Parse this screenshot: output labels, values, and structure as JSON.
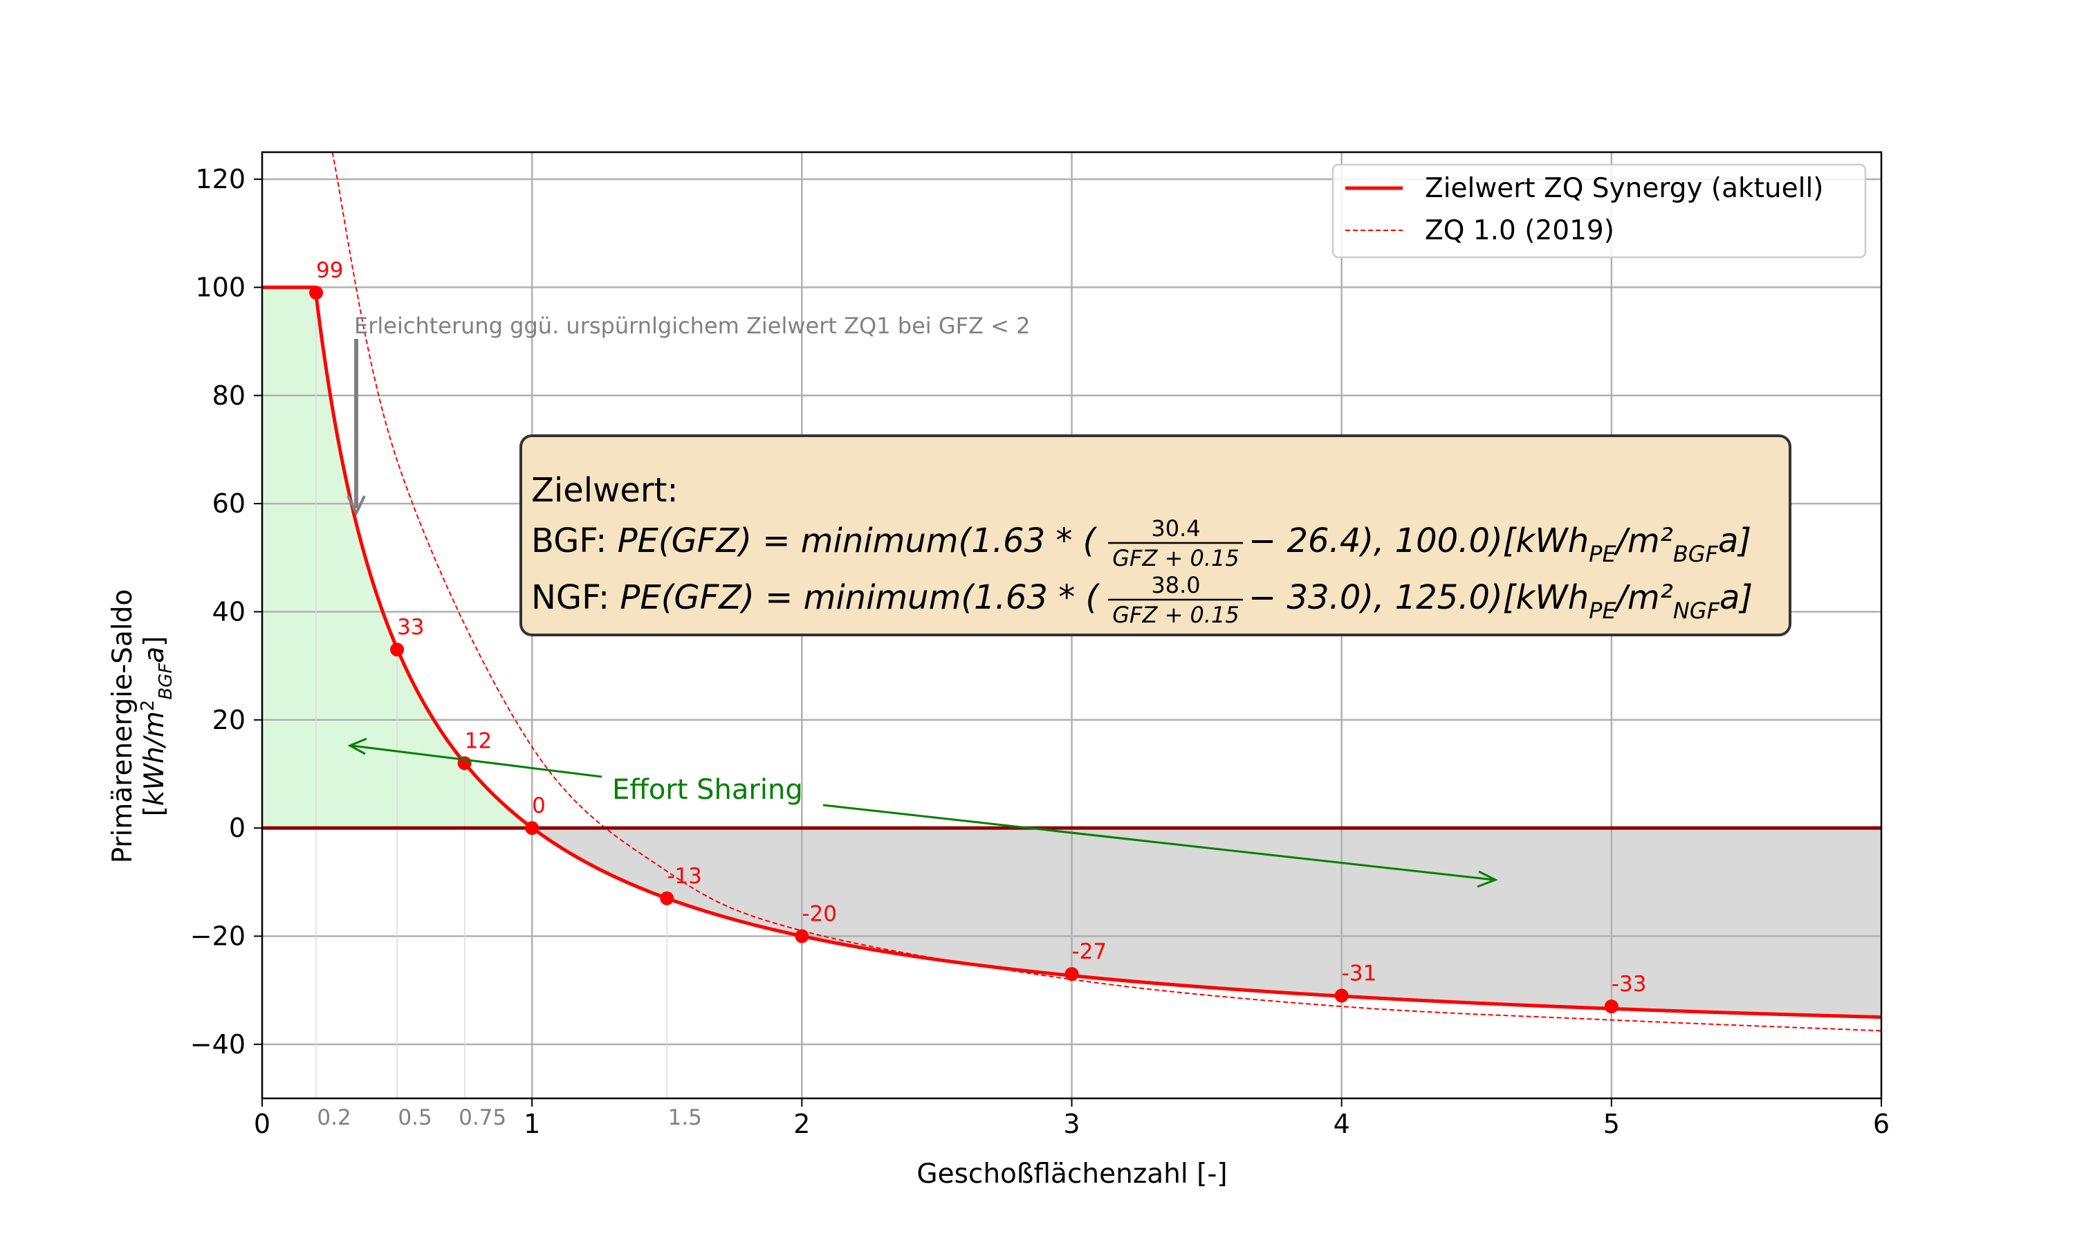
{
  "chart_data": {
    "type": "line",
    "xlabel": "Geschoßflächenzahl [-]",
    "ylabel_line1": "Primärenergie-Saldo",
    "ylabel_line2": "[kWh/m²BGFa]",
    "xlim": [
      0,
      6
    ],
    "ylim": [
      -50,
      125
    ],
    "xticks": [
      "0",
      "1",
      "2",
      "3",
      "4",
      "5",
      "6"
    ],
    "xticks_minor": [
      "0.2",
      "0.5",
      "0.75",
      "1.5"
    ],
    "xticks_minor_values": [
      0.2,
      0.5,
      0.75,
      1.5
    ],
    "yticks": [
      "120",
      "100",
      "80",
      "60",
      "40",
      "20",
      "0",
      "−20",
      "−40"
    ],
    "yticks_values": [
      120,
      100,
      80,
      60,
      40,
      20,
      0,
      -20,
      -40
    ],
    "grid": true,
    "legend_position": "top-right",
    "series": [
      {
        "name": "Zielwert ZQ Synergy (aktuell)",
        "color": "#ff0000",
        "style": "solid",
        "formula": "min(1.63*(30.4/(GFZ+0.15)-26.4), 100.0)",
        "points": [
          {
            "x": 0.0,
            "y": 100
          },
          {
            "x": 0.2,
            "y": 99
          },
          {
            "x": 0.5,
            "y": 33
          },
          {
            "x": 0.75,
            "y": 12
          },
          {
            "x": 1.0,
            "y": 0
          },
          {
            "x": 1.5,
            "y": -13
          },
          {
            "x": 2.0,
            "y": -20
          },
          {
            "x": 3.0,
            "y": -27
          },
          {
            "x": 4.0,
            "y": -31
          },
          {
            "x": 5.0,
            "y": -33
          },
          {
            "x": 6.0,
            "y": -35
          }
        ]
      },
      {
        "name": "ZQ 1.0 (2019)",
        "color": "#ff0000",
        "style": "dashed",
        "points": [
          {
            "x": 0.26,
            "y": 125
          },
          {
            "x": 0.5,
            "y": 68
          },
          {
            "x": 1.0,
            "y": 15
          },
          {
            "x": 1.5,
            "y": -8
          },
          {
            "x": 2.0,
            "y": -19
          },
          {
            "x": 3.0,
            "y": -28
          },
          {
            "x": 4.0,
            "y": -33
          },
          {
            "x": 5.0,
            "y": -35.5
          },
          {
            "x": 6.0,
            "y": -37.5
          }
        ]
      }
    ],
    "marker_points": [
      {
        "x": 0.2,
        "y": 99,
        "label": "99"
      },
      {
        "x": 0.5,
        "y": 33,
        "label": "33"
      },
      {
        "x": 0.75,
        "y": 12,
        "label": "12"
      },
      {
        "x": 1.0,
        "y": 0,
        "label": "0"
      },
      {
        "x": 1.5,
        "y": -13,
        "label": "-13"
      },
      {
        "x": 2.0,
        "y": -20,
        "label": "-20"
      },
      {
        "x": 3.0,
        "y": -27,
        "label": "-27"
      },
      {
        "x": 4.0,
        "y": -31,
        "label": "-31"
      },
      {
        "x": 5.0,
        "y": -33,
        "label": "-33"
      }
    ],
    "colors": {
      "curve": "#ff0000",
      "zero_line": "#8b0000",
      "green_fill": "#dcf8dc",
      "gray_fill": "#d9d9d9",
      "grid": "#b0b0b0",
      "annotation_gray": "#808080",
      "effort_green": "#008000",
      "box_fill": "#f5e3c1",
      "box_edge": "#333333"
    },
    "annotations": {
      "relief_text": "Erleichterung ggü. urspürnlgichem Zielwert ZQ1 bei GFZ < 2",
      "effort_sharing": "Effort Sharing",
      "box_title": "Zielwert:",
      "bgf_prefix": "BGF:",
      "ngf_prefix": "NGF:",
      "bgf_numerator": "30.4",
      "ngf_numerator": "38.0",
      "denominator": "GFZ + 0.15",
      "bgf_left": "PE(GFZ) = minimum(1.63 * (",
      "bgf_right": " − 26.4), 100.0)[kWh",
      "ngf_right": " − 33.0), 125.0)[kWh",
      "unit_pe": "PE",
      "unit_slash": "/m²",
      "unit_bgf": "BGF",
      "unit_ngf": "NGF",
      "unit_end": "a]"
    }
  }
}
